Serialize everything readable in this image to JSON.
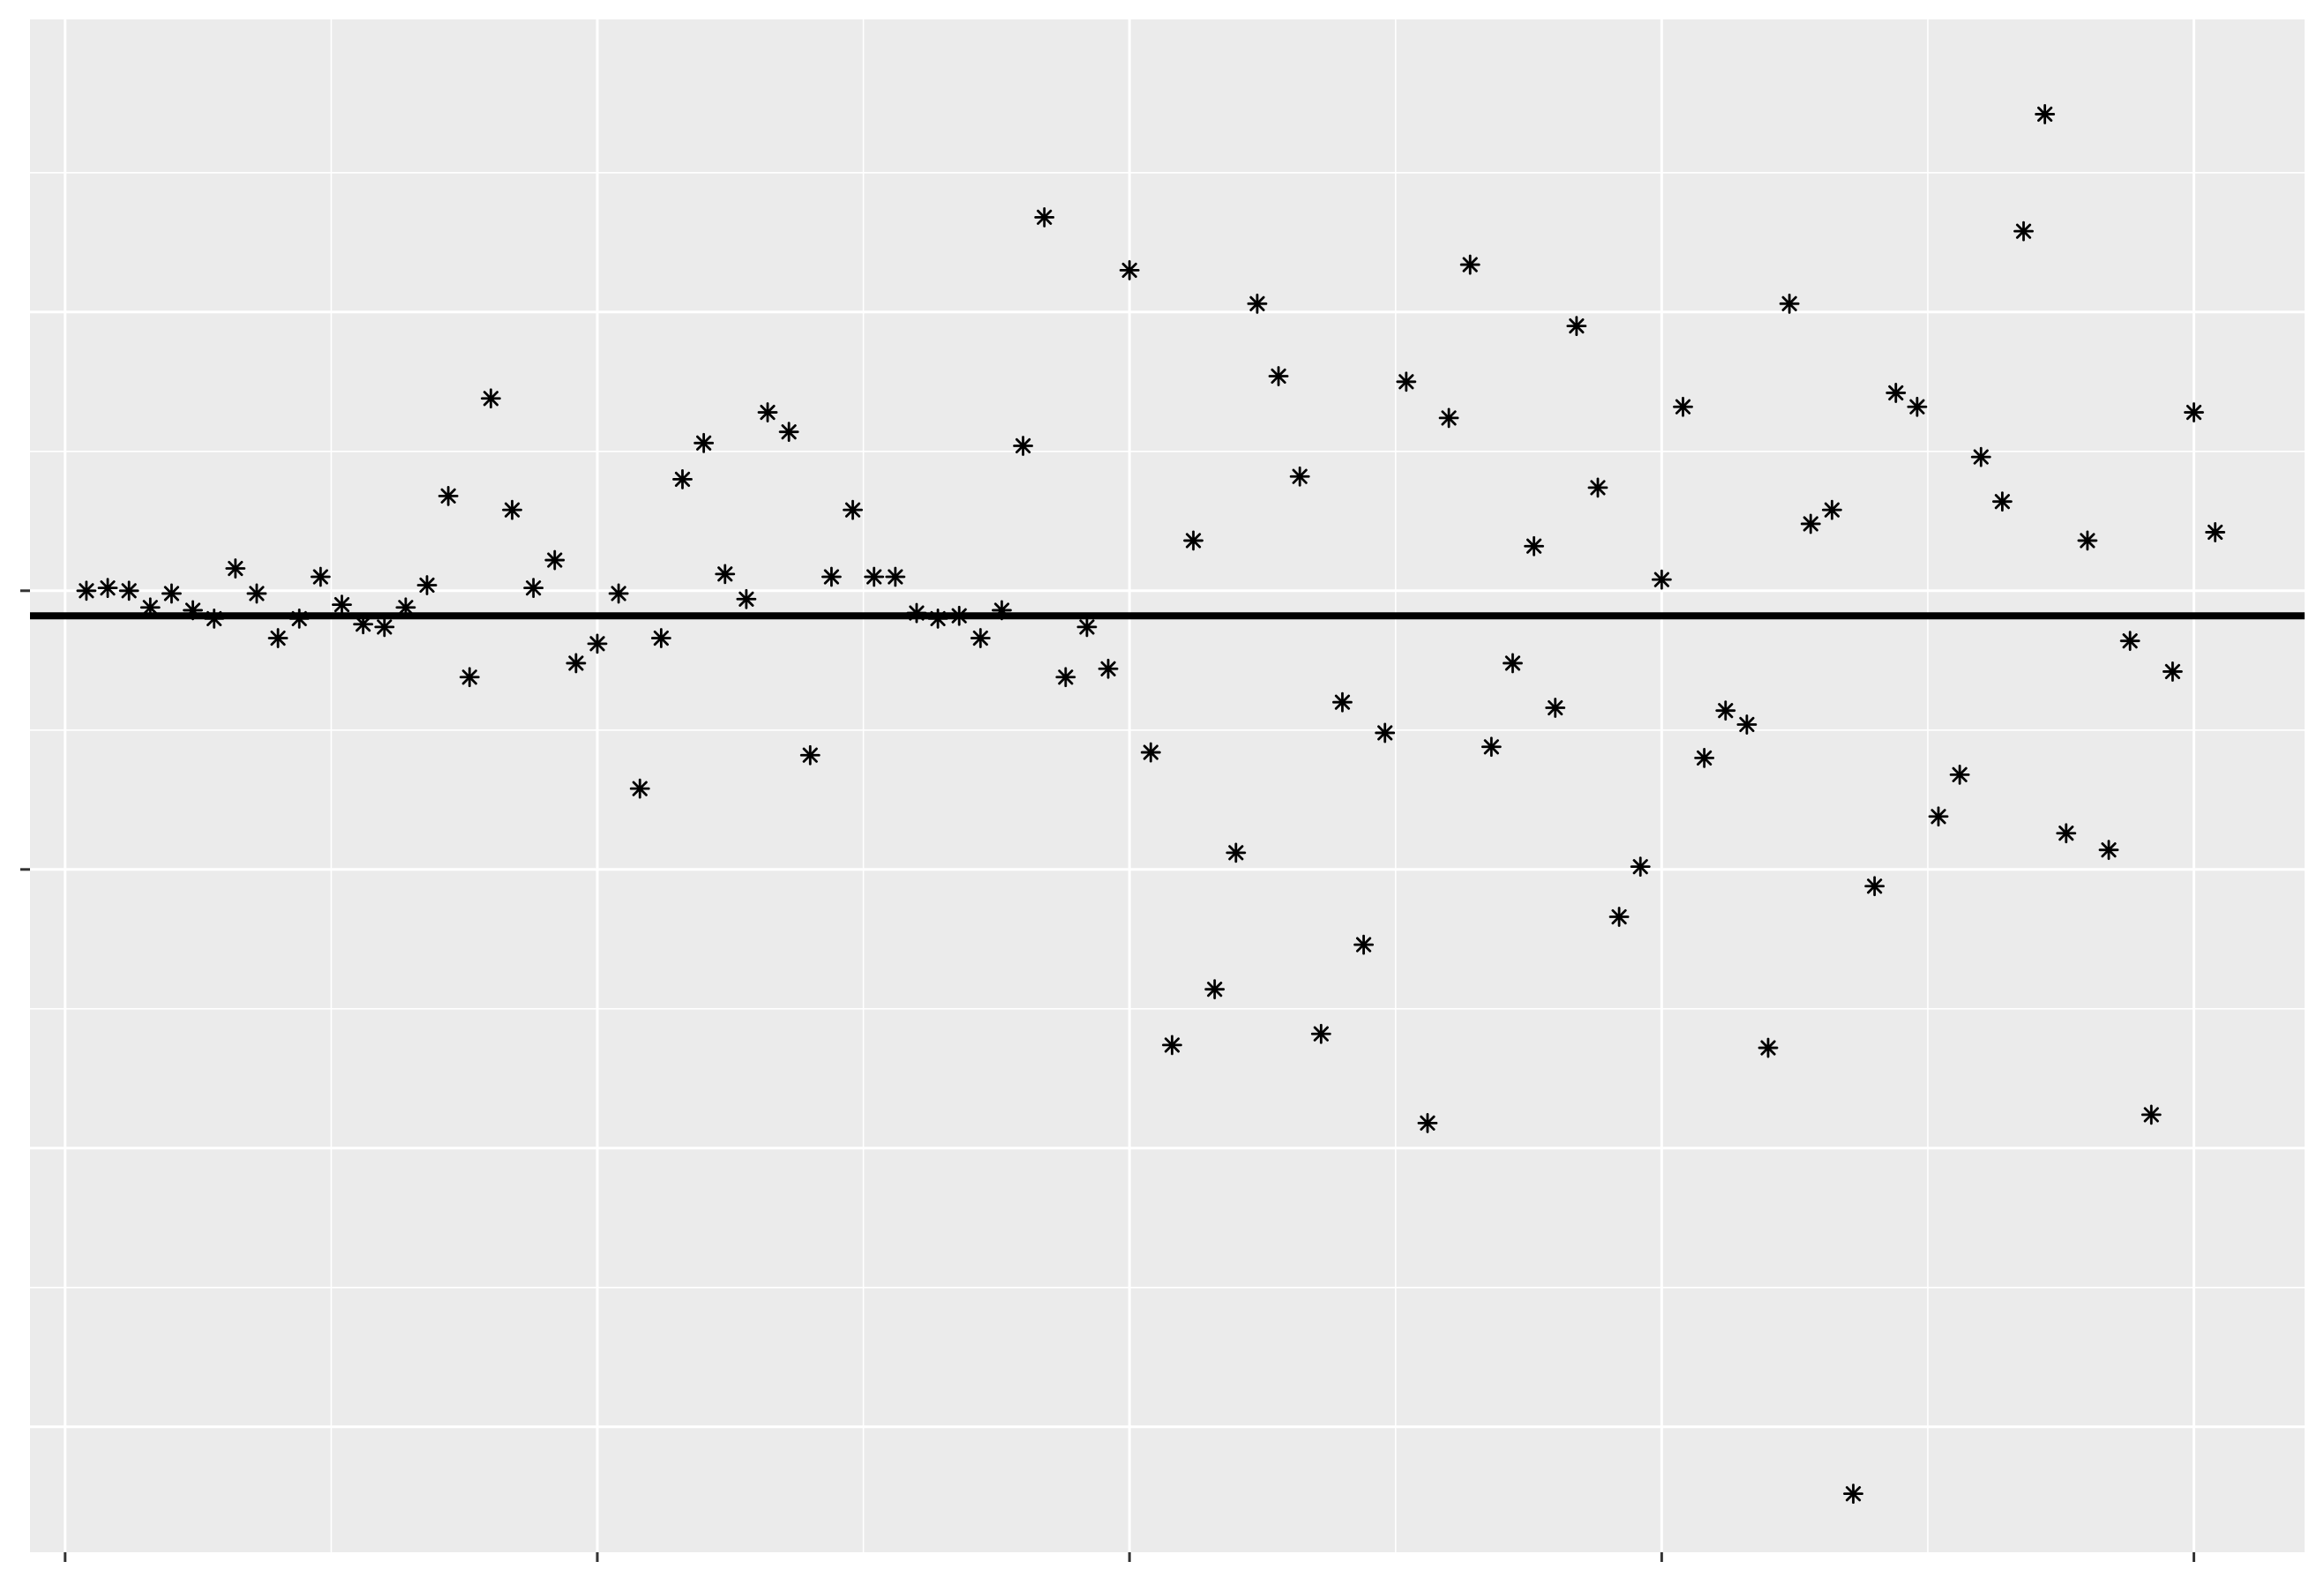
{
  "chart_data": {
    "type": "scatter",
    "title": "",
    "xlabel": "",
    "ylabel": "",
    "x_tick_labels": [],
    "y_tick_labels": [],
    "xlim": [
      -1.65,
      105.2
    ],
    "ylim": [
      -3.45,
      2.05
    ],
    "x_ticks": [
      0,
      25,
      50,
      75,
      100
    ],
    "y_ticks": [
      -3,
      -2,
      -1,
      0,
      1
    ],
    "x_minor_ticks": [
      12.5,
      37.5,
      62.5,
      87.5
    ],
    "y_minor_ticks": [
      -2.5,
      -1.5,
      -0.5,
      0.5,
      1.5
    ],
    "grid": true,
    "reference_lines": {
      "vertical_x": -3.3,
      "horizontal_y": -0.09
    },
    "marker": "asterisk",
    "colors": {
      "panel_background": "#ebebeb",
      "grid": "#ffffff",
      "points": "#000000",
      "reference_lines": "#000000",
      "ticks": "#333333"
    },
    "series": [
      {
        "x": [
          1,
          2,
          3,
          4,
          5,
          6,
          7,
          8,
          9,
          10,
          11,
          12,
          13,
          14,
          15,
          16,
          17,
          18,
          19,
          20,
          21,
          22,
          23,
          24,
          25,
          26,
          27,
          28,
          29,
          30,
          31,
          32,
          33,
          34,
          35,
          36,
          37,
          38,
          39,
          40,
          41,
          42,
          43,
          44,
          45,
          46,
          47,
          48,
          49,
          50,
          51,
          52,
          53,
          54,
          55,
          56,
          57,
          58,
          59,
          60,
          61,
          62,
          63,
          64,
          65,
          66,
          67,
          68,
          69,
          70,
          71,
          72,
          73,
          74,
          75,
          76,
          77,
          78,
          79,
          80,
          81,
          82,
          83,
          84,
          85,
          86,
          87,
          88,
          89,
          90,
          91,
          92,
          93,
          94,
          95,
          96,
          97,
          98,
          99,
          100,
          101
        ],
        "y": [
          0.0,
          0.01,
          0.0,
          -0.06,
          -0.01,
          -0.07,
          -0.1,
          0.08,
          -0.01,
          -0.17,
          -0.1,
          0.05,
          -0.05,
          -0.12,
          -0.13,
          -0.06,
          0.02,
          0.34,
          -0.31,
          0.69,
          0.29,
          0.01,
          0.11,
          -0.26,
          -0.19,
          -0.01,
          -0.71,
          -0.17,
          0.4,
          0.53,
          0.06,
          -0.03,
          0.64,
          0.57,
          -0.59,
          0.05,
          0.29,
          0.05,
          0.05,
          -0.08,
          -0.1,
          -0.09,
          -0.17,
          -0.07,
          0.52,
          1.34,
          -0.31,
          -0.13,
          -0.28,
          1.15,
          -0.58,
          -1.63,
          0.18,
          -1.43,
          -0.94,
          1.03,
          0.77,
          0.41,
          -1.59,
          -0.4,
          -1.27,
          -0.51,
          0.75,
          -1.91,
          0.62,
          1.17,
          -0.56,
          -0.26,
          0.16,
          -0.42,
          0.95,
          0.37,
          -1.17,
          -0.99,
          0.04,
          0.66,
          -0.6,
          -0.43,
          -0.48,
          -1.64,
          1.03,
          0.24,
          0.29,
          -3.24,
          -1.06,
          0.71,
          0.66,
          -0.81,
          -0.66,
          0.48,
          0.32,
          1.29,
          1.71,
          -0.87,
          0.18,
          -0.93,
          -0.18,
          -1.88,
          -0.29,
          0.64,
          0.21
        ]
      }
    ]
  }
}
